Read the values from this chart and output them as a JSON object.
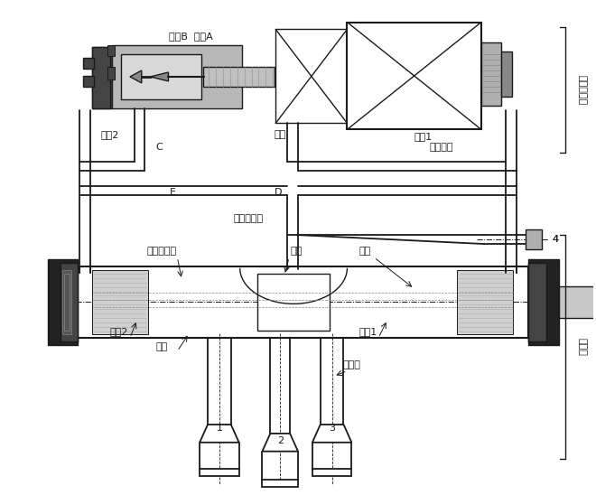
{
  "fig_width": 6.6,
  "fig_height": 5.48,
  "dpi": 100,
  "lc": "#1a1a1a",
  "wc": "#ffffff",
  "gc": "#888888",
  "lgc": "#cccccc",
  "dgc": "#333333",
  "labels": {
    "valve_core_ab": "阀芯B  阀芯A",
    "spring2": "弹簧2",
    "C": "C",
    "armature": "血铁",
    "spring1": "弹簧1",
    "coil": "电磁线圈",
    "E": "E",
    "D": "D",
    "capillary": "导向毛细管",
    "four_way": "四通阀本体",
    "slider": "滑块",
    "small_hole": "小孔",
    "piston2": "活塞2",
    "valve_hole": "阀孔",
    "piston1": "活塞1",
    "connector": "连接管",
    "label1": "1",
    "label2": "2",
    "label3": "3",
    "label4": "4",
    "emg_guide_valve": "电磁导向阀",
    "reversing_valve": "换向阀"
  }
}
